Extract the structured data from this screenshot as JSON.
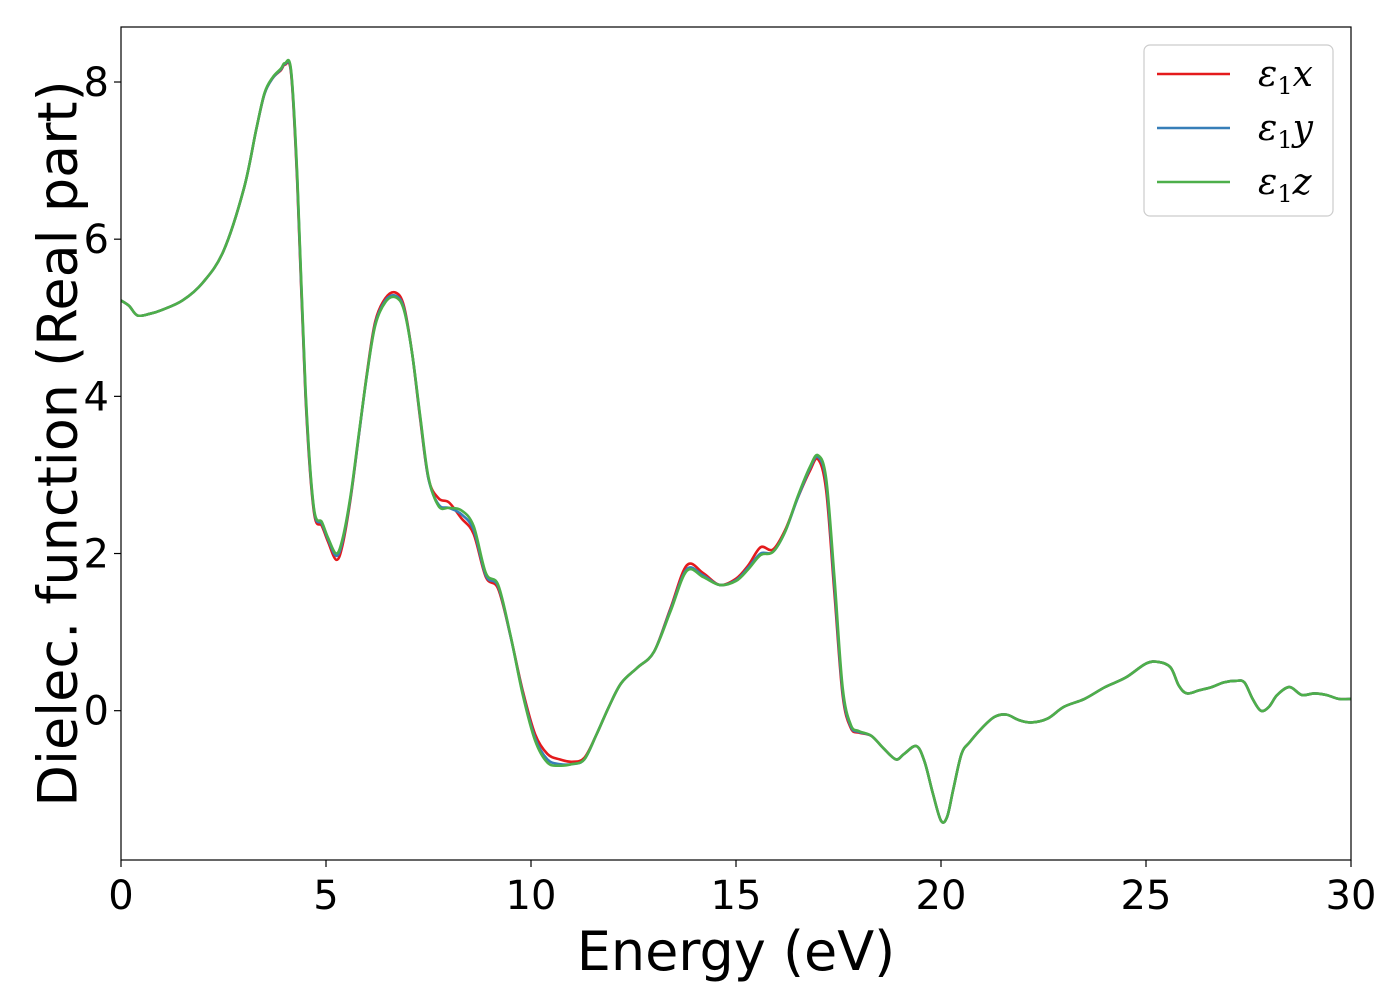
{
  "chart_data": {
    "type": "line",
    "xlabel": "Energy (eV)",
    "ylabel": "Dielec. function (Real part)",
    "xlim": [
      0,
      30
    ],
    "ylim": [
      -1.9,
      8.7
    ],
    "xticks": [
      0,
      5,
      10,
      15,
      20,
      25,
      30
    ],
    "yticks": [
      0,
      2,
      4,
      6,
      8
    ],
    "grid": false,
    "legend_position": "top-right",
    "series": [
      {
        "name": "ε1x",
        "legend": {
          "base": "ε",
          "sub": "1",
          "axis": "x"
        },
        "color": "#e41a1c",
        "x": [
          0,
          0.2,
          0.4,
          0.7,
          1.0,
          1.5,
          2.0,
          2.5,
          3.0,
          3.3,
          3.5,
          3.7,
          3.9,
          4.0,
          4.15,
          4.3,
          4.5,
          4.7,
          4.9,
          5.05,
          5.25,
          5.4,
          5.6,
          5.8,
          6.0,
          6.2,
          6.45,
          6.7,
          6.9,
          7.1,
          7.3,
          7.5,
          7.75,
          8.0,
          8.3,
          8.6,
          8.9,
          9.2,
          9.5,
          9.8,
          10.1,
          10.4,
          10.7,
          11.0,
          11.3,
          11.6,
          11.9,
          12.2,
          12.6,
          13.0,
          13.4,
          13.8,
          14.2,
          14.6,
          15.0,
          15.3,
          15.6,
          15.9,
          16.2,
          16.5,
          16.8,
          17.0,
          17.2,
          17.4,
          17.6,
          17.8,
          18.0,
          18.3,
          18.6,
          18.9,
          19.1,
          19.4,
          19.6,
          19.8,
          20.0,
          20.15,
          20.3,
          20.5,
          20.7,
          21.0,
          21.3,
          21.6,
          21.9,
          22.2,
          22.6,
          23.0,
          23.5,
          24.0,
          24.5,
          25.0,
          25.3,
          25.6,
          25.8,
          26.0,
          26.3,
          26.6,
          26.9,
          27.2,
          27.4,
          27.6,
          27.8,
          28.0,
          28.2,
          28.5,
          28.8,
          29.1,
          29.4,
          29.7,
          30.0
        ],
        "y": [
          5.22,
          5.15,
          5.03,
          5.05,
          5.1,
          5.22,
          5.45,
          5.85,
          6.65,
          7.4,
          7.85,
          8.05,
          8.15,
          8.22,
          8.1,
          6.7,
          4.0,
          2.55,
          2.35,
          2.15,
          1.92,
          2.1,
          2.7,
          3.5,
          4.3,
          4.95,
          5.25,
          5.32,
          5.15,
          4.55,
          3.7,
          2.95,
          2.7,
          2.65,
          2.45,
          2.25,
          1.7,
          1.55,
          0.95,
          0.25,
          -0.3,
          -0.55,
          -0.62,
          -0.65,
          -0.6,
          -0.3,
          0.05,
          0.35,
          0.55,
          0.75,
          1.3,
          1.85,
          1.75,
          1.6,
          1.68,
          1.85,
          2.08,
          2.05,
          2.3,
          2.7,
          3.05,
          3.2,
          2.8,
          1.5,
          0.2,
          -0.22,
          -0.28,
          -0.32,
          -0.48,
          -0.62,
          -0.55,
          -0.45,
          -0.65,
          -1.05,
          -1.4,
          -1.35,
          -1.0,
          -0.55,
          -0.4,
          -0.22,
          -0.08,
          -0.05,
          -0.12,
          -0.15,
          -0.1,
          0.05,
          0.15,
          0.3,
          0.42,
          0.6,
          0.62,
          0.55,
          0.32,
          0.22,
          0.26,
          0.3,
          0.36,
          0.38,
          0.36,
          0.15,
          0.0,
          0.05,
          0.2,
          0.3,
          0.2,
          0.22,
          0.2,
          0.15,
          0.15
        ]
      },
      {
        "name": "ε1y",
        "legend": {
          "base": "ε",
          "sub": "1",
          "axis": "y"
        },
        "color": "#377eb8",
        "x": [
          0,
          0.2,
          0.4,
          0.7,
          1.0,
          1.5,
          2.0,
          2.5,
          3.0,
          3.3,
          3.5,
          3.7,
          3.9,
          4.0,
          4.15,
          4.3,
          4.5,
          4.7,
          4.9,
          5.05,
          5.25,
          5.4,
          5.6,
          5.8,
          6.0,
          6.2,
          6.45,
          6.7,
          6.9,
          7.1,
          7.3,
          7.5,
          7.75,
          8.0,
          8.3,
          8.6,
          8.9,
          9.2,
          9.5,
          9.8,
          10.1,
          10.4,
          10.7,
          11.0,
          11.3,
          11.6,
          11.9,
          12.2,
          12.6,
          13.0,
          13.4,
          13.8,
          14.2,
          14.6,
          15.0,
          15.3,
          15.6,
          15.9,
          16.2,
          16.5,
          16.8,
          17.0,
          17.2,
          17.4,
          17.6,
          17.8,
          18.0,
          18.3,
          18.6,
          18.9,
          19.1,
          19.4,
          19.6,
          19.8,
          20.0,
          20.15,
          20.3,
          20.5,
          20.7,
          21.0,
          21.3,
          21.6,
          21.9,
          22.2,
          22.6,
          23.0,
          23.5,
          24.0,
          24.5,
          25.0,
          25.3,
          25.6,
          25.8,
          26.0,
          26.3,
          26.6,
          26.9,
          27.2,
          27.4,
          27.6,
          27.8,
          28.0,
          28.2,
          28.5,
          28.8,
          29.1,
          29.4,
          29.7,
          30.0
        ],
        "y": [
          5.22,
          5.15,
          5.03,
          5.05,
          5.1,
          5.22,
          5.45,
          5.85,
          6.65,
          7.4,
          7.85,
          8.05,
          8.16,
          8.23,
          8.12,
          6.75,
          4.05,
          2.58,
          2.38,
          2.18,
          1.97,
          2.15,
          2.72,
          3.5,
          4.28,
          4.92,
          5.22,
          5.28,
          5.12,
          4.55,
          3.72,
          2.95,
          2.62,
          2.58,
          2.5,
          2.3,
          1.72,
          1.58,
          0.95,
          0.22,
          -0.35,
          -0.62,
          -0.68,
          -0.68,
          -0.62,
          -0.3,
          0.05,
          0.35,
          0.55,
          0.75,
          1.28,
          1.8,
          1.72,
          1.6,
          1.66,
          1.82,
          2.0,
          2.02,
          2.28,
          2.7,
          3.08,
          3.23,
          2.9,
          1.6,
          0.25,
          -0.2,
          -0.27,
          -0.32,
          -0.48,
          -0.62,
          -0.55,
          -0.45,
          -0.65,
          -1.05,
          -1.4,
          -1.35,
          -1.0,
          -0.55,
          -0.4,
          -0.22,
          -0.08,
          -0.05,
          -0.12,
          -0.15,
          -0.1,
          0.05,
          0.15,
          0.3,
          0.42,
          0.6,
          0.62,
          0.55,
          0.32,
          0.22,
          0.26,
          0.3,
          0.36,
          0.38,
          0.36,
          0.15,
          0.0,
          0.05,
          0.2,
          0.3,
          0.2,
          0.22,
          0.2,
          0.15,
          0.15
        ]
      },
      {
        "name": "ε1z",
        "legend": {
          "base": "ε",
          "sub": "1",
          "axis": "z"
        },
        "color": "#4daf4a",
        "x": [
          0,
          0.2,
          0.4,
          0.7,
          1.0,
          1.5,
          2.0,
          2.5,
          3.0,
          3.3,
          3.5,
          3.7,
          3.9,
          4.0,
          4.15,
          4.3,
          4.5,
          4.7,
          4.9,
          5.05,
          5.25,
          5.4,
          5.6,
          5.8,
          6.0,
          6.2,
          6.45,
          6.7,
          6.9,
          7.1,
          7.3,
          7.5,
          7.75,
          8.0,
          8.3,
          8.6,
          8.9,
          9.2,
          9.5,
          9.8,
          10.1,
          10.4,
          10.7,
          11.0,
          11.3,
          11.6,
          11.9,
          12.2,
          12.6,
          13.0,
          13.4,
          13.8,
          14.2,
          14.6,
          15.0,
          15.3,
          15.6,
          15.9,
          16.2,
          16.5,
          16.8,
          17.0,
          17.2,
          17.4,
          17.6,
          17.8,
          18.0,
          18.3,
          18.6,
          18.9,
          19.1,
          19.4,
          19.6,
          19.8,
          20.0,
          20.15,
          20.3,
          20.5,
          20.7,
          21.0,
          21.3,
          21.6,
          21.9,
          22.2,
          22.6,
          23.0,
          23.5,
          24.0,
          24.5,
          25.0,
          25.3,
          25.6,
          25.8,
          26.0,
          26.3,
          26.6,
          26.9,
          27.2,
          27.4,
          27.6,
          27.8,
          28.0,
          28.2,
          28.5,
          28.8,
          29.1,
          29.4,
          29.7,
          30.0
        ],
        "y": [
          5.22,
          5.15,
          5.03,
          5.05,
          5.1,
          5.22,
          5.45,
          5.85,
          6.65,
          7.4,
          7.86,
          8.06,
          8.17,
          8.24,
          8.14,
          6.8,
          4.1,
          2.6,
          2.4,
          2.2,
          2.0,
          2.18,
          2.74,
          3.52,
          4.28,
          4.9,
          5.2,
          5.26,
          5.1,
          4.55,
          3.74,
          2.97,
          2.6,
          2.58,
          2.55,
          2.35,
          1.75,
          1.6,
          0.96,
          0.2,
          -0.38,
          -0.66,
          -0.7,
          -0.68,
          -0.62,
          -0.3,
          0.05,
          0.35,
          0.55,
          0.75,
          1.26,
          1.78,
          1.7,
          1.6,
          1.65,
          1.8,
          1.98,
          2.02,
          2.28,
          2.72,
          3.1,
          3.25,
          2.95,
          1.7,
          0.3,
          -0.18,
          -0.26,
          -0.32,
          -0.48,
          -0.62,
          -0.55,
          -0.45,
          -0.65,
          -1.05,
          -1.4,
          -1.35,
          -1.0,
          -0.55,
          -0.4,
          -0.22,
          -0.08,
          -0.05,
          -0.12,
          -0.15,
          -0.1,
          0.05,
          0.15,
          0.3,
          0.42,
          0.6,
          0.62,
          0.55,
          0.32,
          0.22,
          0.26,
          0.3,
          0.36,
          0.38,
          0.36,
          0.15,
          0.0,
          0.05,
          0.2,
          0.3,
          0.2,
          0.22,
          0.2,
          0.15,
          0.15
        ]
      }
    ]
  }
}
